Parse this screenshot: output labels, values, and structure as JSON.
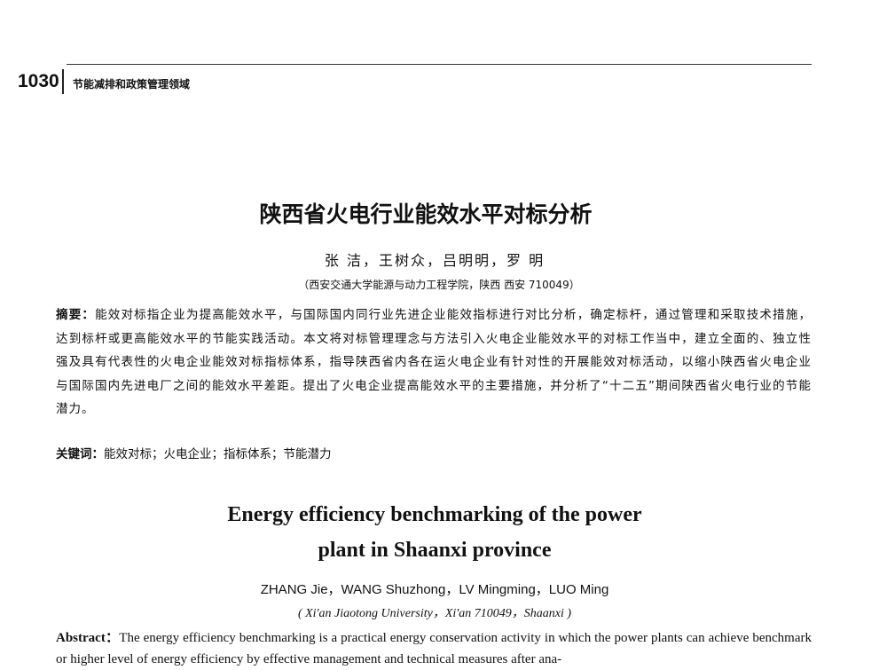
{
  "header": {
    "page_number": "1030",
    "section": "节能减排和政策管理领域"
  },
  "title": "陕西省火电行业能效水平对标分析",
  "authors": "张 洁，王树众，吕明明，罗 明",
  "affiliation": "（西安交通大学能源与动力工程学院，陕西 西安 710049）",
  "abstract": {
    "label": "摘要：",
    "text": "能效对标指企业为提高能效水平，与国际国内同行业先进企业能效指标进行对比分析，确定标杆，通过管理和采取技术措施，达到标杆或更高能效水平的节能实践活动。本文将对标管理理念与方法引入火电企业能效水平的对标工作当中，建立全面的、独立性强及具有代表性的火电企业能效对标指标体系，指导陕西省内各在运火电企业有针对性的开展能效对标活动，以缩小陕西省火电企业与国际国内先进电厂之间的能效水平差距。提出了火电企业提高能效水平的主要措施，并分析了“十二五”期间陕西省火电行业的节能潜力。"
  },
  "keywords": {
    "label": "关键词：",
    "text": "能效对标；火电企业；指标体系；节能潜力"
  },
  "english": {
    "title_line1": "Energy efficiency benchmarking of the power",
    "title_line2": "plant in Shaanxi province",
    "authors": "ZHANG Jie，WANG Shuzhong，LV Mingming，LUO Ming",
    "affiliation": "( Xi'an Jiaotong University，Xi'an 710049，Shaanxi )",
    "abstract_label": "Abstract：",
    "abstract_text": "The energy efficiency benchmarking is a practical energy conservation activity in which the power plants can achieve benchmark or higher level of energy efficiency by effective management and technical measures after ana-"
  }
}
